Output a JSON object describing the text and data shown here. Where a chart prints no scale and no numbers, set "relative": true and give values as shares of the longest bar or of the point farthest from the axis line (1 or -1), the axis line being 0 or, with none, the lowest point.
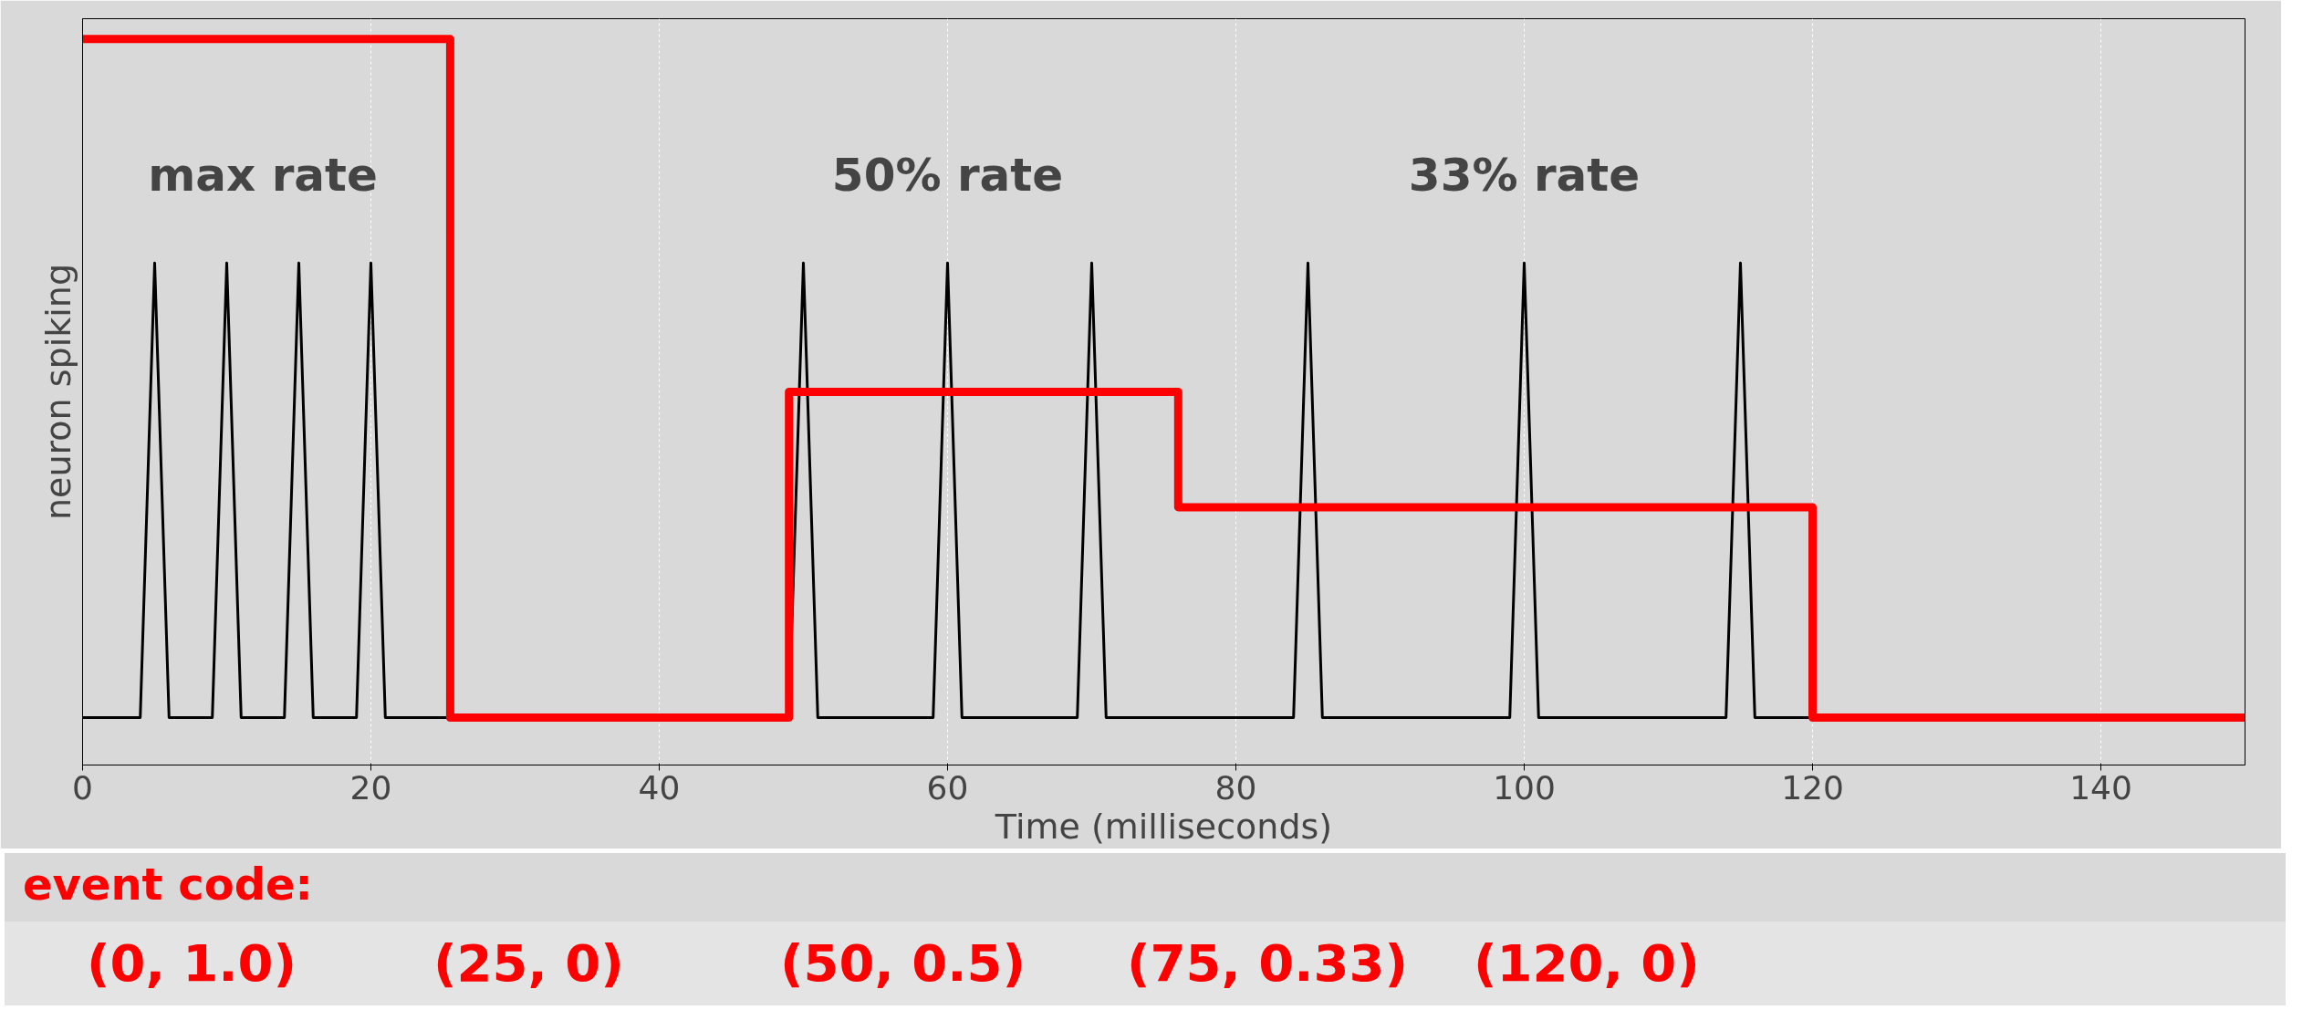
{
  "chart_data": {
    "type": "line",
    "relative": true,
    "xlabel": "Time (milliseconds)",
    "ylabel": "neuron spiking",
    "xlim": [
      0,
      150
    ],
    "xticks": [
      0,
      20,
      40,
      60,
      80,
      100,
      120,
      140
    ],
    "grid": "x",
    "tick_labels": "x",
    "series": [
      {
        "color": "#000000",
        "x": [
          0,
          4,
          5,
          6,
          9,
          10,
          11,
          14,
          15,
          16,
          19,
          20,
          21,
          49,
          50,
          51,
          59,
          60,
          61,
          69,
          70,
          71,
          84,
          85,
          86,
          99,
          100,
          101,
          114,
          115,
          116,
          150
        ],
        "values": [
          0,
          0,
          0.67,
          0,
          0,
          0.67,
          0,
          0,
          0.67,
          0,
          0,
          0.67,
          0,
          0,
          0.67,
          0,
          0,
          0.67,
          0,
          0,
          0.67,
          0,
          0,
          0.67,
          0,
          0,
          0.67,
          0,
          0,
          0.67,
          0,
          0
        ]
      },
      {
        "type": "step",
        "color": "#ff0000",
        "x": [
          0,
          25.5,
          49,
          76,
          120,
          150
        ],
        "values": [
          1,
          0,
          0.48,
          0.31,
          0,
          0
        ]
      }
    ],
    "annotations": [
      "max rate",
      "50% rate",
      "33% rate",
      "event code:",
      "(0, 1.0)",
      "(25, 0)",
      "(50, 0.5)",
      "(75, 0.33)",
      "(120, 0)"
    ]
  }
}
